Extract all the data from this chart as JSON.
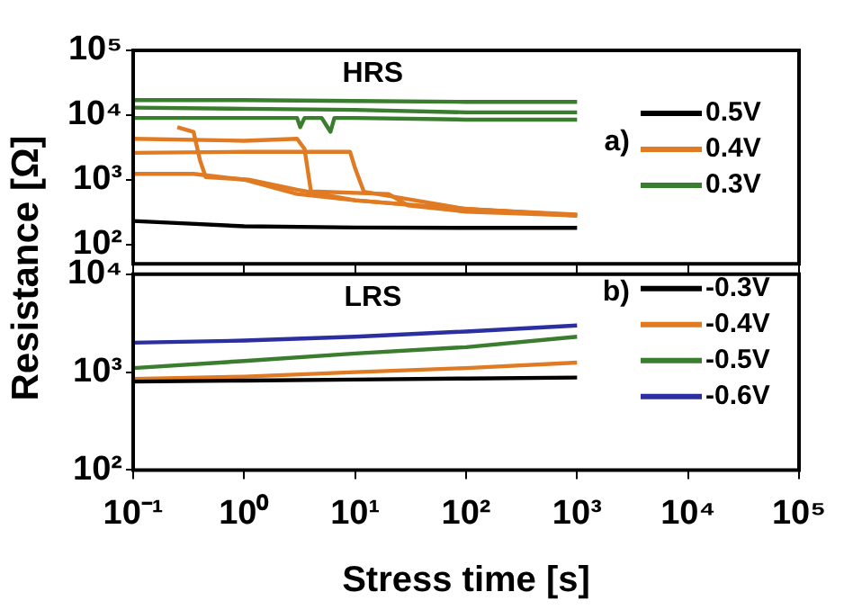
{
  "chart_data": [
    {
      "type": "line",
      "ylabel": "Resistance [Ω]",
      "annotations": [
        "HRS",
        "a)"
      ],
      "log": "xy",
      "legend": "right",
      "tick_labels": "y",
      "grid": false,
      "xlim": [
        0.1,
        100000
      ],
      "ylim": [
        50,
        100000
      ],
      "xticks": [
        {
          "value": 0.1,
          "label": null
        },
        {
          "value": 1,
          "label": null
        },
        {
          "value": 10,
          "label": null
        },
        {
          "value": 100,
          "label": null
        },
        {
          "value": 1000,
          "label": null
        },
        {
          "value": 10000,
          "label": null
        },
        {
          "value": 100000,
          "label": null
        }
      ],
      "yticks": [
        {
          "value": 100,
          "label": "10²"
        },
        {
          "value": 1000,
          "label": "10³"
        },
        {
          "value": 10000,
          "label": "10⁴"
        },
        {
          "value": 100000,
          "label": "10⁵"
        }
      ],
      "series": [
        {
          "name": "0.5V",
          "color": "#000000",
          "x": [
            0.1,
            0.3,
            1,
            10,
            100,
            1000
          ],
          "values": [
            230,
            210,
            190,
            182,
            180,
            180
          ]
        },
        {
          "name": "0.4V",
          "color": "#e07b24",
          "x": [
            0.1,
            1,
            3,
            3.5,
            4,
            20,
            30,
            100,
            1000
          ],
          "values": [
            4300,
            4000,
            4300,
            3000,
            660,
            600,
            400,
            320,
            280
          ]
        },
        {
          "color": "#e07b24",
          "x": [
            0.25,
            0.35,
            0.4,
            0.45,
            1.1,
            3,
            10,
            50,
            1000
          ],
          "values": [
            6500,
            5500,
            2000,
            1100,
            1000,
            700,
            480,
            380,
            280
          ]
        },
        {
          "color": "#e07b24",
          "x": [
            0.1,
            1,
            9,
            10,
            12,
            30,
            100,
            1000
          ],
          "values": [
            2600,
            2700,
            2700,
            1500,
            650,
            500,
            350,
            290
          ]
        },
        {
          "color": "#e07b24",
          "x": [
            0.1,
            0.35,
            1,
            3,
            10,
            100,
            1000
          ],
          "values": [
            1230,
            1230,
            1000,
            600,
            480,
            350,
            280
          ]
        },
        {
          "name": "0.3V",
          "color": "#3a7d2e",
          "x": [
            0.1,
            1,
            10,
            100,
            1000
          ],
          "values": [
            17000,
            17000,
            16500,
            16000,
            16000
          ]
        },
        {
          "color": "#3a7d2e",
          "x": [
            0.1,
            1,
            10,
            100,
            1000
          ],
          "values": [
            13000,
            12500,
            12000,
            11000,
            11000
          ]
        },
        {
          "color": "#3a7d2e",
          "x": [
            0.1,
            1,
            3,
            3.2,
            3.5,
            5,
            6,
            6.5,
            10,
            100,
            1000
          ],
          "values": [
            9000,
            9000,
            9000,
            6500,
            9000,
            9000,
            5500,
            9000,
            9000,
            8500,
            8500
          ]
        }
      ]
    },
    {
      "type": "line",
      "xlabel": "Stress time [s]",
      "annotations": [
        "LRS",
        "b)"
      ],
      "log": "xy",
      "legend": "right",
      "grid": false,
      "xlim": [
        0.1,
        100000
      ],
      "ylim": [
        100,
        10000
      ],
      "xticks": [
        {
          "value": 0.1,
          "label": "10⁻¹"
        },
        {
          "value": 1,
          "label": "10⁰"
        },
        {
          "value": 10,
          "label": "10¹"
        },
        {
          "value": 100,
          "label": "10²"
        },
        {
          "value": 1000,
          "label": "10³"
        },
        {
          "value": 10000,
          "label": "10⁴"
        },
        {
          "value": 100000,
          "label": "10⁵"
        }
      ],
      "yticks": [
        {
          "value": 100,
          "label": "10²"
        },
        {
          "value": 1000,
          "label": "10³"
        },
        {
          "value": 10000,
          "label": "10⁴"
        }
      ],
      "series": [
        {
          "name": "-0.3V",
          "color": "#000000",
          "x": [
            0.1,
            1,
            10,
            100,
            1000
          ],
          "values": [
            800,
            820,
            840,
            860,
            880
          ]
        },
        {
          "name": "-0.4V",
          "color": "#e07b24",
          "x": [
            0.1,
            1,
            10,
            100,
            1000
          ],
          "values": [
            850,
            900,
            1000,
            1100,
            1250
          ]
        },
        {
          "name": "-0.5V",
          "color": "#3a7d2e",
          "x": [
            0.1,
            1,
            10,
            100,
            1000
          ],
          "values": [
            1100,
            1300,
            1550,
            1800,
            2300
          ]
        },
        {
          "name": "-0.6V",
          "color": "#2b2fa0",
          "x": [
            0.1,
            1,
            10,
            100,
            1000
          ],
          "values": [
            2000,
            2100,
            2300,
            2600,
            3000
          ]
        }
      ]
    }
  ]
}
